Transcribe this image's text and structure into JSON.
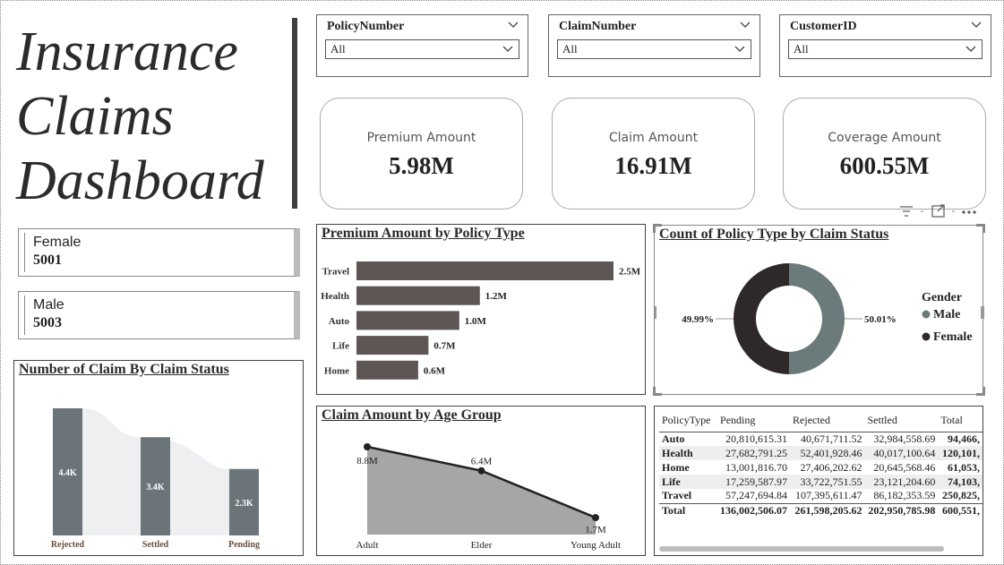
{
  "title": {
    "lines": [
      "Insurance",
      "Claims",
      "Dashboard"
    ]
  },
  "slicers": [
    {
      "label": "PolicyNumber",
      "value": "All"
    },
    {
      "label": "ClaimNumber",
      "value": "All"
    },
    {
      "label": "CustomerID",
      "value": "All"
    }
  ],
  "kpis": [
    {
      "label": "Premium Amount",
      "value": "5.98M"
    },
    {
      "label": "Claim Amount",
      "value": "16.91M"
    },
    {
      "label": "Coverage Amount",
      "value": "600.55M"
    }
  ],
  "gender_cards": [
    {
      "label": "Female",
      "value": "5001"
    },
    {
      "label": "Male",
      "value": "5003"
    }
  ],
  "colors": {
    "bar": "#5e5555",
    "status_bar": "#6b7478",
    "ribbon": "#eeeff0",
    "area": "#a6a6a6",
    "donut_male": "#6b7a7a",
    "donut_female": "#2f2828"
  },
  "charts": {
    "premium_by_policy": {
      "title": "Premium Amount by Policy Type",
      "chart_data": {
        "type": "bar",
        "orientation": "horizontal",
        "categories": [
          "Travel",
          "Health",
          "Auto",
          "Life",
          "Home"
        ],
        "values": [
          2.5,
          1.2,
          1.0,
          0.7,
          0.6
        ],
        "data_labels": [
          "2.5M",
          "1.2M",
          "1.0M",
          "0.7M",
          "0.6M"
        ],
        "xlim": [
          0,
          2.5
        ]
      }
    },
    "claim_status_count": {
      "title": "Count of Policy Type by Claim Status",
      "legend_title": "Gender",
      "chart_data": {
        "type": "pie",
        "donut": true,
        "labels": [
          "Male",
          "Female"
        ],
        "values": [
          50.01,
          49.99
        ],
        "data_labels": [
          "50.01%",
          "49.99%"
        ],
        "legend_position": "right"
      }
    },
    "claims_by_status": {
      "title": "Number of Claim By Claim Status",
      "chart_data": {
        "type": "bar",
        "categories": [
          "Rejected",
          "Settled",
          "Pending"
        ],
        "values": [
          4.4,
          3.4,
          2.3
        ],
        "data_labels": [
          "4.4K",
          "3.4K",
          "2.3K"
        ],
        "ylim": [
          0,
          4.4
        ]
      }
    },
    "claim_by_age": {
      "title": "Claim Amount by Age Group",
      "chart_data": {
        "type": "area",
        "categories": [
          "Adult",
          "Elder",
          "Young Adult"
        ],
        "values": [
          8.8,
          6.4,
          1.7
        ],
        "data_labels": [
          "8.8M",
          "6.4M",
          "1.7M"
        ],
        "ylim": [
          0,
          8.8
        ]
      }
    }
  },
  "matrix": {
    "columns": [
      "PolicyType",
      "Pending",
      "Rejected",
      "Settled",
      "Total"
    ],
    "rows": [
      [
        "Auto",
        "20,810,615.31",
        "40,671,711.52",
        "32,984,558.69",
        "94,466,"
      ],
      [
        "Health",
        "27,682,791.25",
        "52,401,928.46",
        "40,017,100.64",
        "120,101,"
      ],
      [
        "Home",
        "13,001,816.70",
        "27,406,202.62",
        "20,645,568.46",
        "61,053,"
      ],
      [
        "Life",
        "17,259,587.97",
        "33,722,751.55",
        "23,121,204.60",
        "74,103,"
      ],
      [
        "Travel",
        "57,247,694.84",
        "107,395,611.47",
        "86,182,353.59",
        "250,825,"
      ]
    ],
    "total": [
      "Total",
      "136,002,506.07",
      "261,598,205.62",
      "202,950,785.98",
      "600,551,"
    ]
  }
}
